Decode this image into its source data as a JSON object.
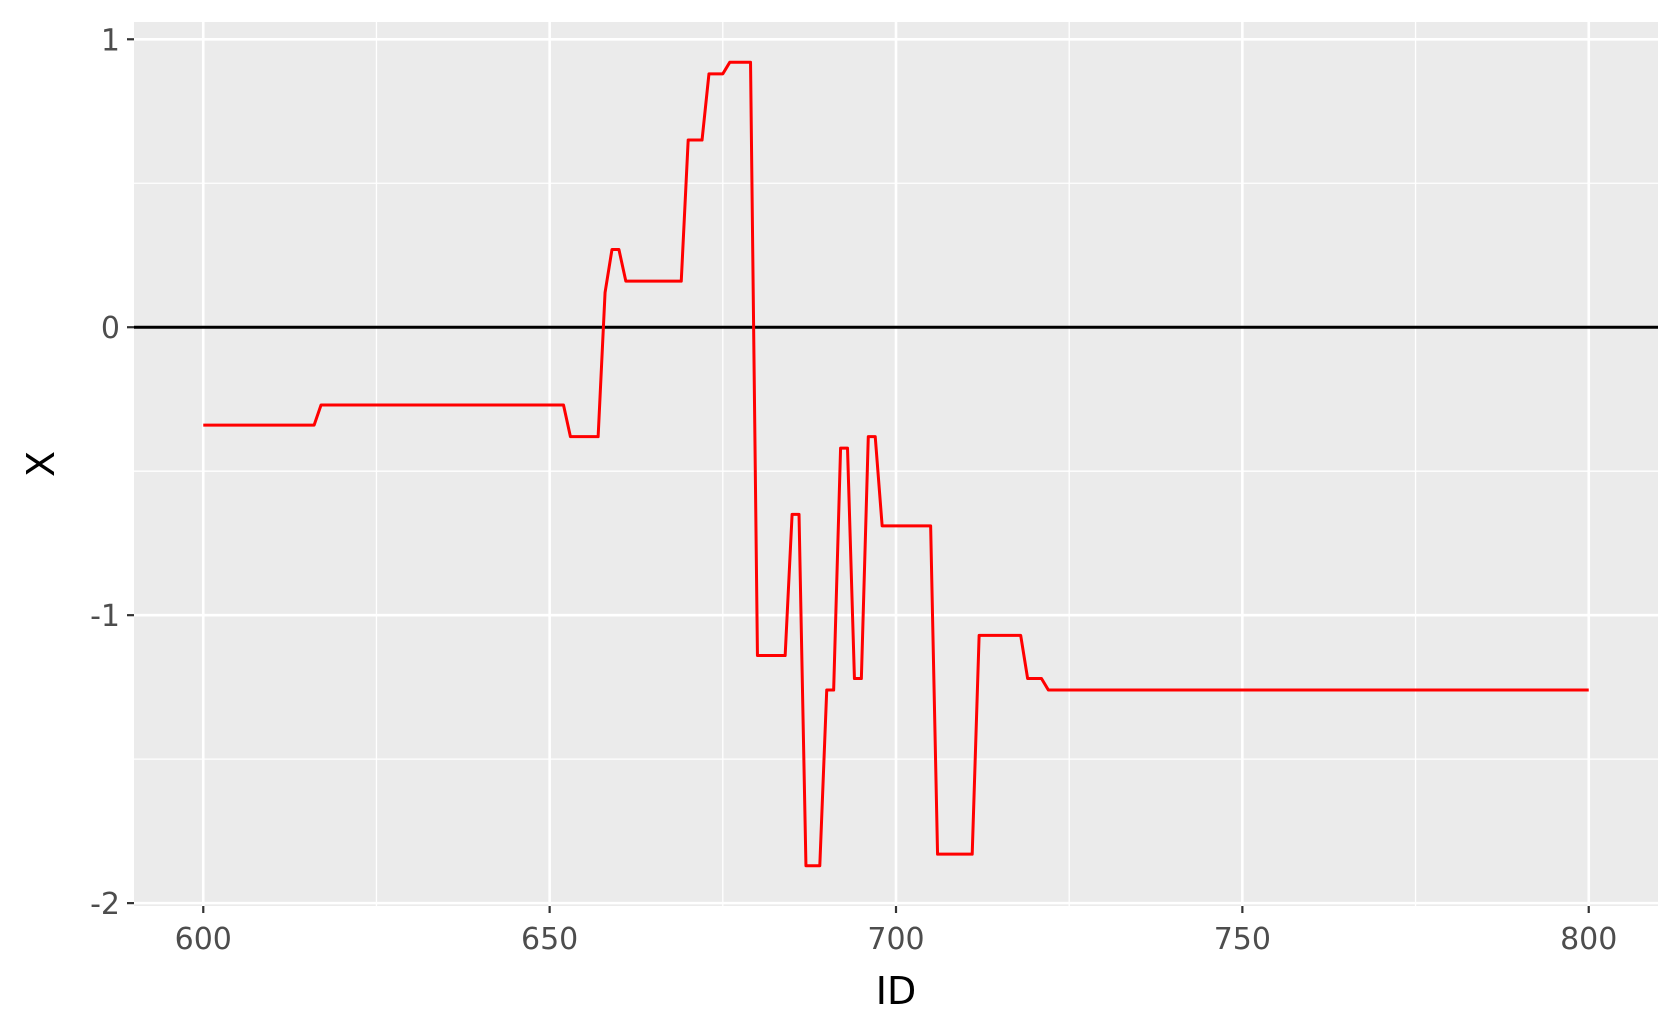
{
  "chart_data": {
    "type": "line",
    "xlabel": "ID",
    "ylabel": "X",
    "xlim": [
      590,
      810
    ],
    "ylim": [
      -2.01,
      1.06
    ],
    "x_ticks": [
      600,
      650,
      700,
      750,
      800
    ],
    "x_tick_labels": [
      "600",
      "650",
      "700",
      "750",
      "800"
    ],
    "y_ticks": [
      1,
      0,
      -1,
      -2
    ],
    "y_tick_labels": [
      "1",
      "0",
      "-1",
      "-2"
    ],
    "grid": true,
    "reference_line": {
      "y": 0,
      "color": "#000000"
    },
    "series": [
      {
        "color": "#ff0000",
        "x": [
          600,
          616,
          617,
          618,
          652,
          653,
          654,
          657,
          658,
          659,
          660,
          661,
          662,
          669,
          670,
          672,
          673,
          675,
          676,
          679,
          680,
          684,
          685,
          686,
          687,
          689,
          690,
          691,
          692,
          693,
          694,
          695,
          696,
          697,
          698,
          705,
          706,
          711,
          712,
          718,
          719,
          721,
          722,
          800
        ],
        "y": [
          -0.34,
          -0.34,
          -0.27,
          -0.27,
          -0.27,
          -0.38,
          -0.38,
          -0.38,
          0.12,
          0.27,
          0.27,
          0.16,
          0.16,
          0.16,
          0.65,
          0.65,
          0.88,
          0.88,
          0.92,
          0.92,
          -1.14,
          -1.14,
          -0.65,
          -0.65,
          -1.87,
          -1.87,
          -1.26,
          -1.26,
          -0.42,
          -0.42,
          -1.22,
          -1.22,
          -0.38,
          -0.38,
          -0.69,
          -0.69,
          -1.83,
          -1.83,
          -1.07,
          -1.07,
          -1.22,
          -1.22,
          -1.26,
          -1.26
        ]
      }
    ]
  }
}
